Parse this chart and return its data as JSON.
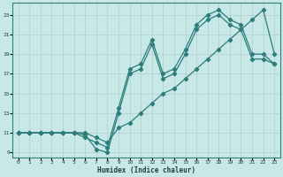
{
  "xlabel": "Humidex (Indice chaleur)",
  "bg_color": "#c8e8e8",
  "grid_color": "#b0d0d0",
  "line_color": "#2d7d7d",
  "xlim": [
    -0.5,
    23.5
  ],
  "ylim": [
    8.5,
    24.2
  ],
  "xticks": [
    0,
    1,
    2,
    3,
    4,
    5,
    6,
    7,
    8,
    9,
    10,
    11,
    12,
    13,
    14,
    15,
    16,
    17,
    18,
    19,
    20,
    21,
    22,
    23
  ],
  "yticks": [
    9,
    11,
    13,
    15,
    17,
    19,
    21,
    23
  ],
  "line1_x": [
    0,
    1,
    2,
    3,
    4,
    5,
    6,
    7,
    8,
    9,
    10,
    11,
    12,
    13,
    14,
    15,
    16,
    17,
    18,
    19,
    20,
    21,
    22,
    23
  ],
  "line1_y": [
    11,
    11,
    11,
    11,
    11,
    11,
    10.5,
    10,
    9.5,
    13.5,
    17.5,
    18,
    20.5,
    17,
    17.5,
    19.5,
    22,
    23,
    23.5,
    22.5,
    22,
    19,
    19,
    18
  ],
  "line2_x": [
    0,
    1,
    2,
    3,
    4,
    5,
    6,
    7,
    8,
    9,
    10,
    11,
    12,
    13,
    14,
    15,
    16,
    17,
    18,
    19,
    20,
    21,
    22,
    23
  ],
  "line2_y": [
    11,
    11,
    11,
    11,
    11,
    11,
    10.8,
    9.3,
    9,
    13,
    17,
    17.5,
    20,
    16.5,
    17,
    19,
    21.5,
    22.5,
    23,
    22,
    21.5,
    18.5,
    18.5,
    18
  ],
  "line3_x": [
    0,
    1,
    2,
    3,
    4,
    5,
    6,
    7,
    8,
    9,
    10,
    11,
    12,
    13,
    14,
    15,
    16,
    17,
    18,
    19,
    20,
    21,
    22,
    23
  ],
  "line3_y": [
    11,
    11,
    11,
    11,
    11,
    11,
    11,
    10.5,
    10,
    11.5,
    12,
    13,
    14,
    15,
    15.5,
    16.5,
    17.5,
    18.5,
    19.5,
    20.5,
    21.5,
    22.5,
    23.5,
    19
  ]
}
